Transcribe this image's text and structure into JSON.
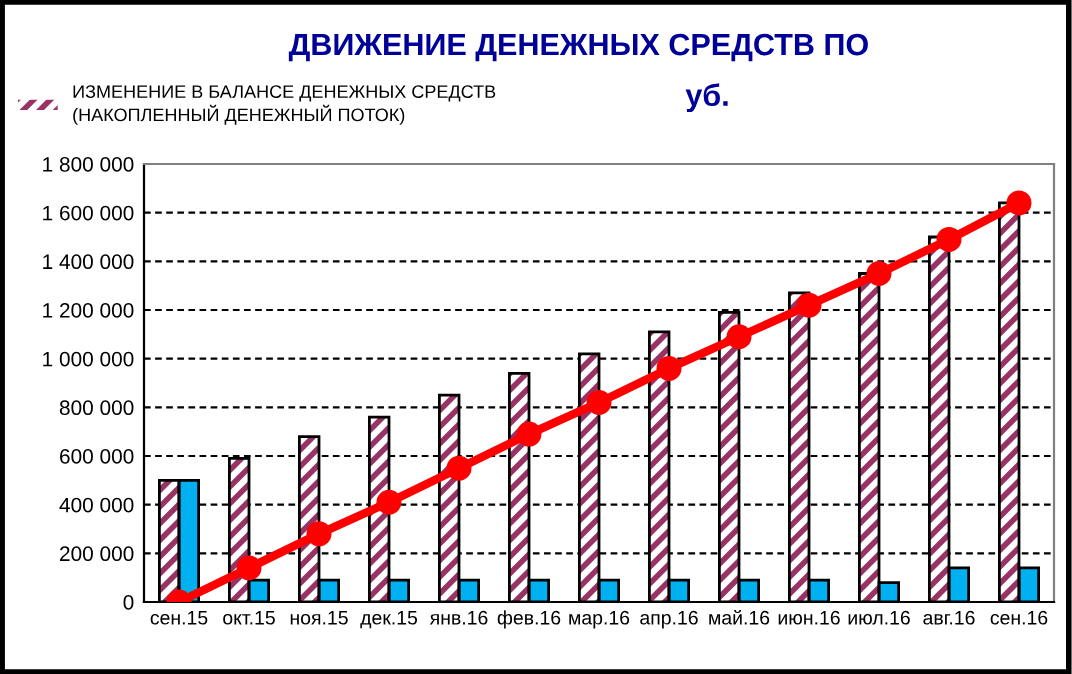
{
  "chart_data": {
    "type": "bar",
    "title": "ДВИЖЕНИЕ ДЕНЕЖНЫХ СРЕДСТВ ПО",
    "subtitle": "уб.",
    "categories": [
      "сен.15",
      "окт.15",
      "ноя.15",
      "дек.15",
      "янв.16",
      "фев.16",
      "мар.16",
      "апр.16",
      "май.16",
      "июн.16",
      "июл.16",
      "авг.16",
      "сен.16"
    ],
    "series": [
      {
        "name": "ИЗМЕНЕНИЕ В БАЛАНСЕ ДЕНЕЖНЫХ СРЕДСТВ\n(НАКОПЛЕННЫЙ ДЕНЕЖНЫЙ ПОТОК)",
        "color": "#993366",
        "values": [
          500000,
          590000,
          680000,
          760000,
          850000,
          940000,
          1020000,
          1110000,
          1190000,
          1270000,
          1350000,
          1500000,
          1640000
        ]
      },
      {
        "color": "#00b0f0",
        "values": [
          500000,
          90000,
          90000,
          90000,
          90000,
          90000,
          90000,
          90000,
          90000,
          90000,
          80000,
          140000,
          140000
        ]
      },
      {
        "type": "line",
        "color": "#ff0000",
        "marker": "circle",
        "values": [
          0,
          140000,
          280000,
          410000,
          550000,
          690000,
          820000,
          960000,
          1090000,
          1220000,
          1350000,
          1490000,
          1640000
        ]
      }
    ],
    "ylim": [
      0,
      1800000
    ],
    "yticks": [
      0,
      {
        "value": 200000,
        "label": "200 000"
      },
      {
        "value": 400000,
        "label": "400 000"
      },
      {
        "value": 600000,
        "label": "600 000"
      },
      {
        "value": 800000,
        "label": "800 000"
      },
      {
        "value": 1000000,
        "label": "1 000 000"
      },
      {
        "value": 1200000,
        "label": "1 200 000"
      },
      {
        "value": 1400000,
        "label": "1 400 000"
      },
      {
        "value": 1600000,
        "label": "1 600 000"
      },
      {
        "value": 1800000,
        "label": "1 800 000"
      }
    ],
    "grid": "y",
    "legend": "top left"
  }
}
